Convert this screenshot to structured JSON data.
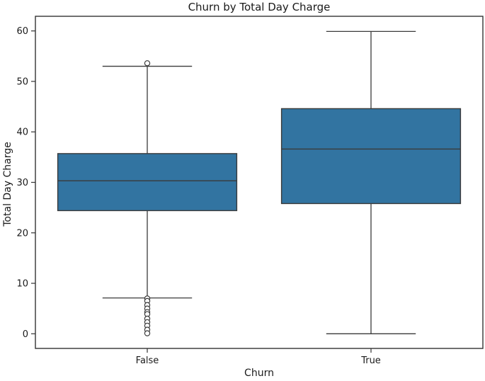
{
  "figure": {
    "title": "Churn by Total Day Charge",
    "xlabel": "Churn",
    "ylabel": "Total Day Charge"
  },
  "chart_data": {
    "type": "boxplot",
    "title": "Churn by Total Day Charge",
    "xlabel": "Churn",
    "ylabel": "Total Day Charge",
    "categories": [
      "False",
      "True"
    ],
    "ylim": [
      -2.9,
      62.9
    ],
    "yticks": [
      0,
      10,
      20,
      30,
      40,
      50,
      60
    ],
    "grid": false,
    "legend": "none",
    "colors": {
      "box_fill": "#3274a1",
      "box_edge": "#3a3a3a",
      "whisker": "#3a3a3a",
      "median": "#3a3a3a",
      "outlier_edge": "#3a3a3a",
      "outlier_fill": "#ffffff",
      "spine": "#333333",
      "tick_text": "#1a1a1a"
    },
    "boxes": [
      {
        "category": "False",
        "whislo": 7.1,
        "q1": 24.4,
        "med": 30.3,
        "q3": 35.7,
        "whishi": 53.0,
        "outliers": [
          53.6,
          7.0,
          6.5,
          5.7,
          5.0,
          4.3,
          3.9,
          3.0,
          2.3,
          1.6,
          0.8,
          0.1
        ]
      },
      {
        "category": "True",
        "whislo": 0.0,
        "q1": 25.8,
        "med": 36.6,
        "q3": 44.6,
        "whishi": 59.9,
        "outliers": []
      }
    ]
  }
}
